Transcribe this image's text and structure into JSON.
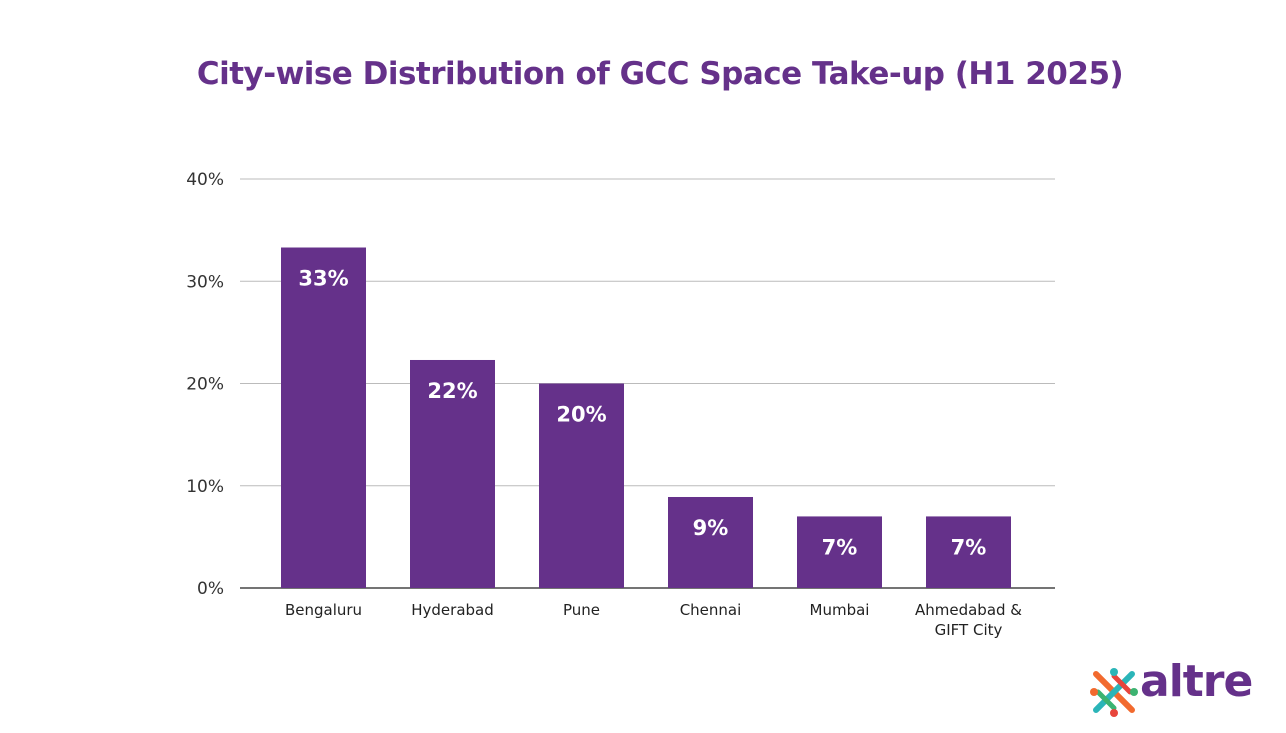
{
  "brand": {
    "logo_text": "altre",
    "logo_icon": "people-cross-icon",
    "colors": {
      "primary": "#65318a",
      "orange": "#f26a2e",
      "green": "#3cb371",
      "teal": "#2bb5b8"
    }
  },
  "chart_data": {
    "type": "bar",
    "title": "City-wise Distribution of GCC Space Take-up (H1 2025)",
    "xlabel": "",
    "ylabel": "",
    "categories": [
      "Bengaluru",
      "Hyderabad",
      "Pune",
      "Chennai",
      "Mumbai",
      "Ahmedabad & GIFT City"
    ],
    "category_lines": [
      [
        "Bengaluru"
      ],
      [
        "Hyderabad"
      ],
      [
        "Pune"
      ],
      [
        "Chennai"
      ],
      [
        "Mumbai"
      ],
      [
        "Ahmedabad &",
        "GIFT City"
      ]
    ],
    "values": [
      33.3,
      22.3,
      20,
      8.9,
      7,
      7
    ],
    "data_labels": [
      "33%",
      "22%",
      "20%",
      "9%",
      "7%",
      "7%"
    ],
    "ylim": [
      0,
      40
    ],
    "yticks": [
      0,
      10,
      20,
      30,
      40
    ],
    "ytick_labels": [
      "0%",
      "10%",
      "20%",
      "30%",
      "40%"
    ],
    "bar_color": "#65318a",
    "grid": true,
    "legend": "none"
  }
}
